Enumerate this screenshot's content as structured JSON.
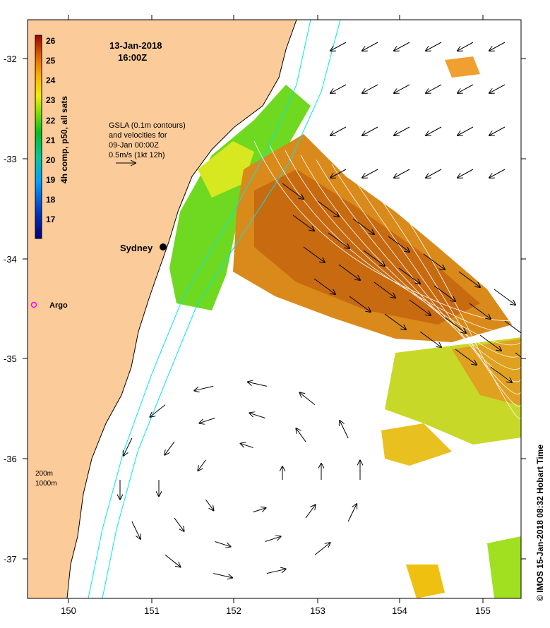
{
  "map": {
    "date": "13-Jan-2018",
    "time": "16:00Z",
    "legend_lines": [
      "GSLA (0.1m contours)",
      "and velocities for",
      "09-Jan 00:00Z",
      "0.5m/s (1kt 12h)"
    ],
    "colorbar": {
      "label": "4h comp, p50, all sats",
      "ticks": [
        "26",
        "25",
        "24",
        "23",
        "22",
        "21",
        "20",
        "19",
        "18",
        "17"
      ],
      "range": [
        16.2,
        26.3
      ]
    },
    "lon_ticks": [
      "150",
      "151",
      "152",
      "153",
      "154",
      "155"
    ],
    "lat_ticks": [
      "-32",
      "-33",
      "-34",
      "-35",
      "-36",
      "-37"
    ],
    "places": {
      "city": "Sydney",
      "float": "Argo"
    },
    "isobaths": [
      "200m",
      "1000m"
    ],
    "copyright": "© IMOS 15-Jan-2018 08:32 Hobart Time",
    "colors": {
      "land": "#fccb9a",
      "isobath": "#00e5ee",
      "argo": "#ff00ff"
    }
  }
}
